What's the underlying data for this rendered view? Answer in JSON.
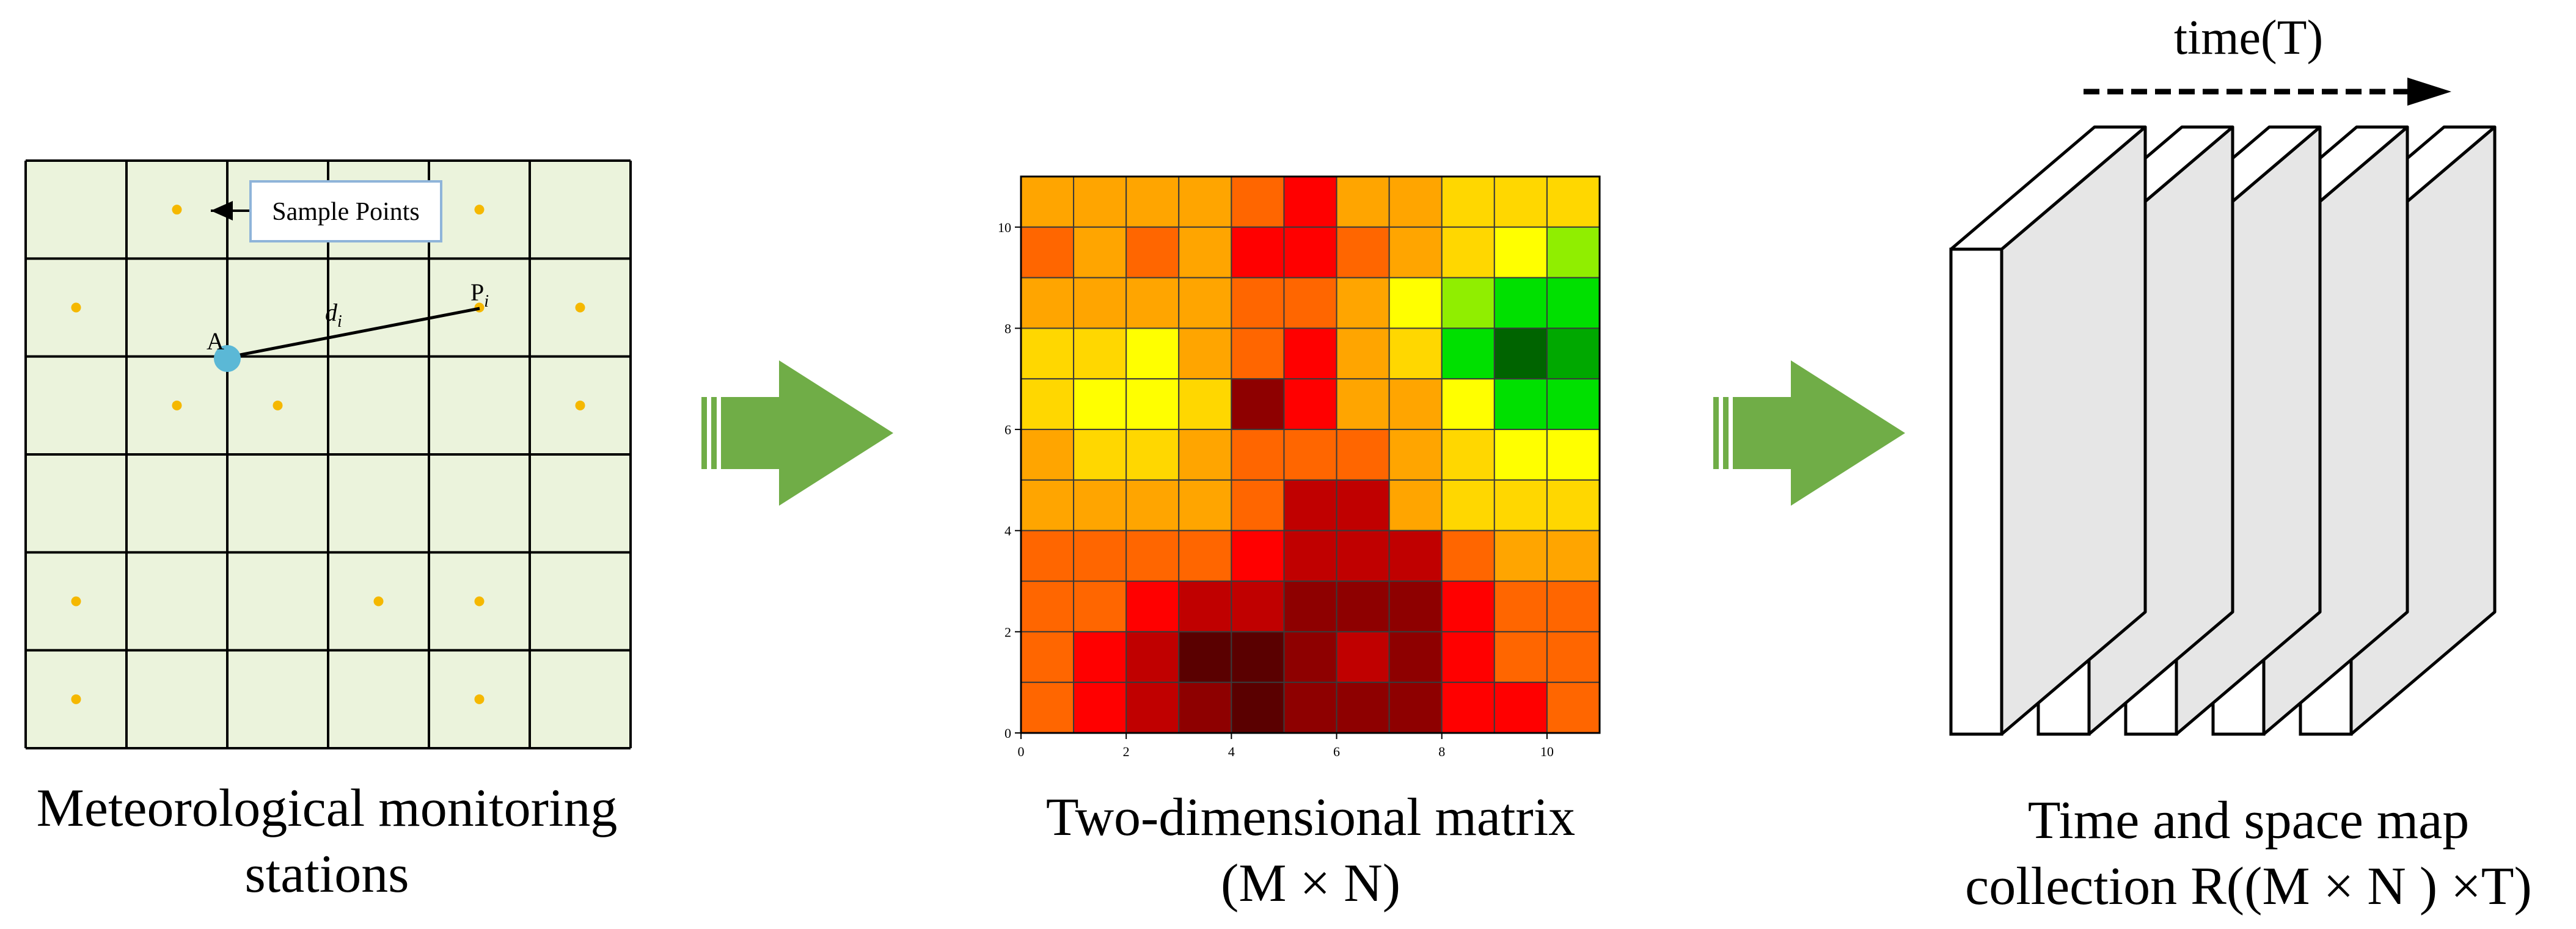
{
  "panel1": {
    "callout_label": "Sample Points",
    "station_label": "A",
    "distance_label_base": "d",
    "distance_label_sub": "i",
    "point_label_base": "P",
    "point_label_sub": "i",
    "caption_line1": "Meteorological monitoring",
    "caption_line2": "stations",
    "grid_rows": 6,
    "grid_cols": 6,
    "sample_points": [
      [
        1.5,
        0.5
      ],
      [
        4.5,
        0.5
      ],
      [
        0.5,
        1.5
      ],
      [
        4.5,
        1.5
      ],
      [
        5.5,
        1.5
      ],
      [
        1.5,
        2.5
      ],
      [
        2.5,
        2.5
      ],
      [
        5.5,
        2.5
      ],
      [
        0.5,
        4.5
      ],
      [
        3.5,
        4.5
      ],
      [
        4.5,
        4.5
      ],
      [
        0.5,
        5.5
      ],
      [
        4.5,
        5.5
      ]
    ],
    "colors": {
      "fill": "#ebf3dc",
      "point": "#f5b800",
      "station": "#5bb8d6",
      "callout_border": "#8fb4d9"
    }
  },
  "panel2": {
    "caption_line1": "Two-dimensional matrix",
    "caption_line2": "(M × N)"
  },
  "panel3": {
    "time_label": "time(T)",
    "caption_line1": "Time and space map",
    "caption_line2": "collection R((M × N ) ×T)",
    "layer_count": 5
  },
  "arrow_color": "#70ad47",
  "chart_data": {
    "type": "heatmap",
    "xlim": [
      0,
      11
    ],
    "ylim": [
      0,
      11
    ],
    "xticks": [
      "0",
      "2",
      "4",
      "6",
      "8",
      "10"
    ],
    "yticks": [
      "0",
      "2",
      "4",
      "6",
      "8",
      "10"
    ],
    "colormap": [
      {
        "v": 0,
        "c": "#5a0000"
      },
      {
        "v": 1,
        "c": "#8e0000"
      },
      {
        "v": 2,
        "c": "#c00000"
      },
      {
        "v": 3,
        "c": "#ff0000"
      },
      {
        "v": 4,
        "c": "#ff6600"
      },
      {
        "v": 5,
        "c": "#ffa500"
      },
      {
        "v": 6,
        "c": "#ffd700"
      },
      {
        "v": 7,
        "c": "#ffff00"
      },
      {
        "v": 8,
        "c": "#90ee00"
      },
      {
        "v": 9,
        "c": "#00e000"
      },
      {
        "v": 10,
        "c": "#00a800"
      },
      {
        "v": 11,
        "c": "#006400"
      }
    ],
    "rows_top_to_bottom": [
      [
        5,
        5,
        5,
        5,
        4,
        3,
        5,
        5,
        6,
        6,
        6
      ],
      [
        4,
        5,
        4,
        5,
        3,
        3,
        4,
        5,
        6,
        7,
        8
      ],
      [
        5,
        5,
        5,
        5,
        4,
        4,
        5,
        7,
        8,
        9,
        9
      ],
      [
        6,
        6,
        7,
        5,
        4,
        3,
        5,
        6,
        9,
        11,
        10
      ],
      [
        6,
        7,
        7,
        6,
        1,
        3,
        5,
        5,
        7,
        9,
        9
      ],
      [
        5,
        6,
        6,
        5,
        4,
        4,
        4,
        5,
        6,
        7,
        7
      ],
      [
        5,
        5,
        5,
        5,
        4,
        2,
        2,
        5,
        6,
        6,
        6
      ],
      [
        4,
        4,
        4,
        4,
        3,
        2,
        2,
        2,
        4,
        5,
        5
      ],
      [
        4,
        4,
        3,
        2,
        2,
        1,
        1,
        1,
        3,
        4,
        4
      ],
      [
        4,
        3,
        2,
        0,
        0,
        1,
        2,
        1,
        3,
        4,
        4
      ],
      [
        4,
        3,
        2,
        1,
        0,
        1,
        1,
        1,
        3,
        3,
        4
      ]
    ]
  }
}
